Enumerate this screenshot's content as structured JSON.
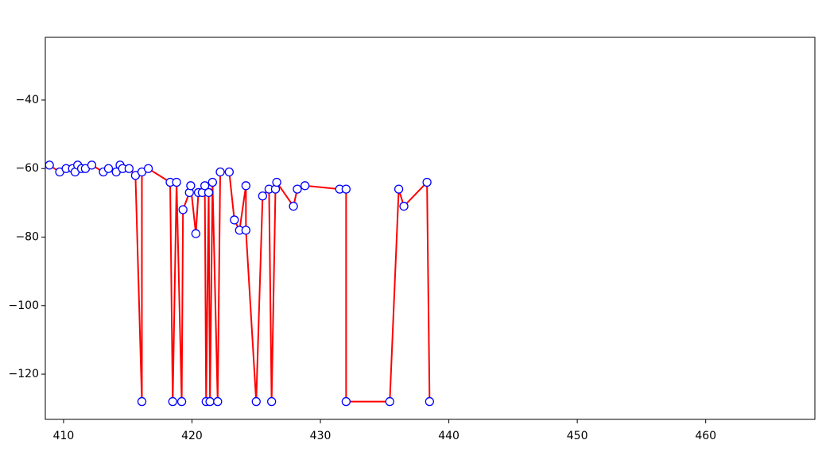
{
  "chart_data": {
    "type": "line",
    "x": [
      408.9,
      409.7,
      410.2,
      410.7,
      410.9,
      411.1,
      411.4,
      411.7,
      412.2,
      413.1,
      413.5,
      414.1,
      414.4,
      414.6,
      415.1,
      415.6,
      416.1,
      416.1,
      416.6,
      418.3,
      418.5,
      418.8,
      419.2,
      419.3,
      419.8,
      419.9,
      420.3,
      420.5,
      420.8,
      421.0,
      421.1,
      421.3,
      421.4,
      421.6,
      422.0,
      422.2,
      422.9,
      423.3,
      423.7,
      424.2,
      424.2,
      425.0,
      425.5,
      426.0,
      426.2,
      426.5,
      426.6,
      427.9,
      428.2,
      428.8,
      431.5,
      432.0,
      432.0,
      435.4,
      436.1,
      436.5,
      438.3,
      438.5
    ],
    "series": [
      {
        "color": "#ff0000",
        "marker_edge": "#0000ff",
        "marker_fill": "#ffffff",
        "values": [
          -59,
          -61,
          -60,
          -60,
          -61,
          -59,
          -60,
          -60,
          -59,
          -61,
          -60,
          -61,
          -59,
          -60,
          -60,
          -62,
          -128,
          -61,
          -60,
          -64,
          -128,
          -64,
          -128,
          -72,
          -67,
          -65,
          -79,
          -67,
          -67,
          -65,
          -128,
          -67,
          -128,
          -64,
          -128,
          -61,
          -61,
          -75,
          -78,
          -65,
          -78,
          -128,
          -68,
          -66,
          -128,
          -66,
          -64,
          -71,
          -66,
          -65,
          -66,
          -66,
          -128,
          -128,
          -66,
          -71,
          -64,
          -128
        ]
      }
    ],
    "xlim": [
      408.58,
      468.5
    ],
    "xticks": [
      410,
      420,
      430,
      440,
      450,
      460
    ],
    "ylim": [
      -133.2,
      -21.7
    ],
    "yticks": [
      {
        "value": -40,
        "label": "−40"
      },
      {
        "value": -60,
        "label": "−60"
      },
      {
        "value": -80,
        "label": "−80"
      },
      {
        "value": -100,
        "label": "−100"
      },
      {
        "value": -120,
        "label": "−120"
      }
    ],
    "grid": false
  }
}
